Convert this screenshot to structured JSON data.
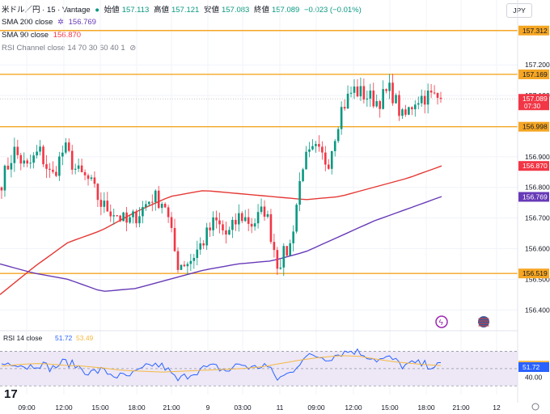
{
  "header": {
    "symbol": "米ドル／円 · 15 · Vantage",
    "open_label": "始値",
    "open": "157.113",
    "high_label": "高値",
    "high": "157.121",
    "low_label": "安値",
    "low": "157.083",
    "close_label": "終値",
    "close": "157.089",
    "change": "−0.023 (−0.01%)"
  },
  "legend": {
    "sma200": {
      "label": "SMA 200 close",
      "value": "156.769",
      "color": "#673ab7"
    },
    "sma90": {
      "label": "SMA 90 close",
      "value": "156.870",
      "color": "#e53935"
    },
    "rsi_channel": {
      "label": "RSI Channel close 14 70 30 60 40 1"
    }
  },
  "currency_button": "JPY",
  "colors": {
    "up": "#089981",
    "down": "#f23645",
    "level": "#f5a623",
    "rsi": "#2962ff",
    "rsi_ma": "#f5b942",
    "rsi_band": "#ede7f6"
  },
  "rsi_panel": {
    "label": "RSI 14 close",
    "value": "51.72",
    "ma_value": "53.49",
    "tick_40": "40.00"
  },
  "chart_data": {
    "type": "candlestick",
    "ylim": [
      156.34,
      157.38
    ],
    "y_ticks": [
      "157.200",
      "157.100",
      "156.900",
      "156.800",
      "156.700",
      "156.600",
      "156.500",
      "156.400"
    ],
    "x_ticks": [
      "09:00",
      "12:00",
      "15:00",
      "18:00",
      "21:00",
      "9",
      "03:00",
      "11",
      "09:00",
      "12:00",
      "15:00",
      "18:00",
      "21:00",
      "12"
    ],
    "levels": [
      {
        "value": 157.312,
        "label": "157.312"
      },
      {
        "value": 157.169,
        "label": "157.169"
      },
      {
        "value": 156.998,
        "label": "156.998"
      },
      {
        "value": 156.519,
        "label": "156.519"
      }
    ],
    "price_tags": {
      "last": {
        "value": 157.089,
        "label": "157.089",
        "countdown": "07:30"
      },
      "sma90": {
        "value": 156.87,
        "label": "156.870"
      },
      "sma200": {
        "value": 156.769,
        "label": "156.769"
      }
    },
    "series": [
      {
        "type": "candles",
        "anchors": [
          156.82,
          156.92,
          156.86,
          156.92,
          156.83,
          156.93,
          156.85,
          156.82,
          156.74,
          156.72,
          156.68,
          156.72,
          156.77,
          156.75,
          156.55,
          156.56,
          156.62,
          156.69,
          156.64,
          156.71,
          156.68,
          156.73,
          156.55,
          156.61,
          156.88,
          156.92,
          156.88,
          157.05,
          157.12,
          157.1,
          157.08,
          157.12,
          157.02,
          157.09,
          157.1,
          157.09
        ]
      },
      {
        "type": "line",
        "anchors": [
          156.45,
          156.54,
          156.62,
          156.66,
          156.72,
          156.77,
          156.79,
          156.78,
          156.77,
          156.76,
          156.77,
          156.8,
          156.83,
          156.87
        ]
      },
      {
        "type": "line",
        "anchors": [
          156.55,
          156.52,
          156.5,
          156.46,
          156.47,
          156.5,
          156.53,
          156.55,
          156.56,
          156.59,
          156.64,
          156.69,
          156.73,
          156.77
        ]
      },
      {
        "type": "rsi",
        "anchors": [
          55,
          58,
          52,
          56,
          50,
          58,
          53,
          45,
          48,
          42,
          40,
          47,
          55,
          52,
          36,
          44,
          50,
          52,
          47,
          56,
          50,
          55,
          38,
          45,
          62,
          65,
          62,
          68,
          71,
          66,
          60,
          62,
          53,
          56,
          54,
          53
        ]
      },
      {
        "type": "rsi_ma",
        "anchors": [
          53,
          55,
          56,
          54,
          53,
          51,
          48,
          47,
          46,
          47,
          48,
          49,
          50,
          52,
          56,
          60,
          63,
          65,
          64,
          60,
          57,
          55,
          53.5
        ]
      }
    ]
  }
}
